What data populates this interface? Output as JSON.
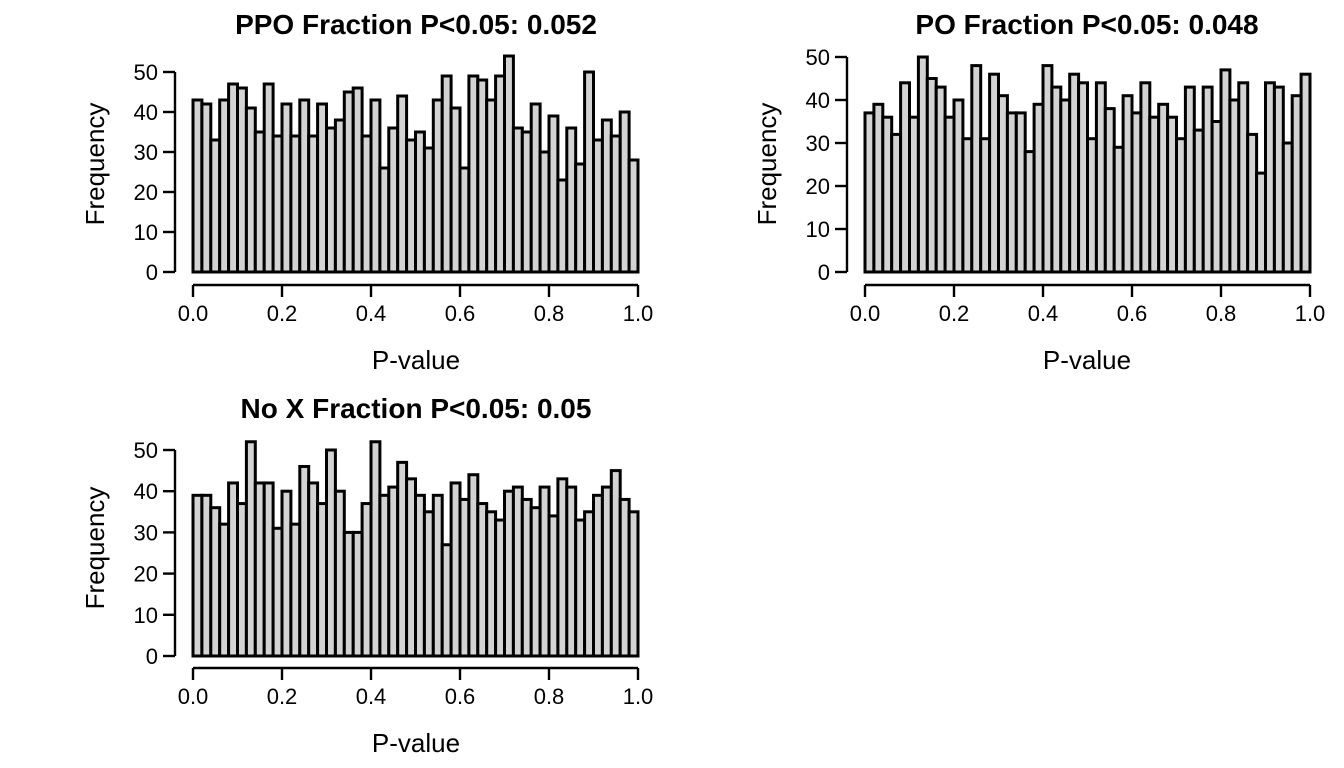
{
  "chart_data": [
    {
      "type": "bar",
      "title": "PPO    Fraction P<0.05: 0.052",
      "xlabel": "P-value",
      "ylabel": "Frequency",
      "xlim": [
        0,
        1
      ],
      "ylim": [
        0,
        50
      ],
      "xticks": [
        "0.0",
        "0.2",
        "0.4",
        "0.6",
        "0.8",
        "1.0"
      ],
      "yticks": [
        "0",
        "10",
        "20",
        "30",
        "40",
        "50"
      ],
      "bin_width": 0.02,
      "values": [
        43,
        42,
        33,
        43,
        47,
        46,
        41,
        35,
        47,
        34,
        42,
        34,
        43,
        34,
        42,
        36,
        38,
        45,
        46,
        34,
        43,
        26,
        36,
        44,
        33,
        35,
        31,
        43,
        49,
        41,
        26,
        49,
        48,
        43,
        49,
        54,
        36,
        35,
        42,
        30,
        39,
        23,
        36,
        27,
        50,
        33,
        38,
        34,
        40,
        28
      ],
      "colors": {
        "bar_fill": "#d3d3d3",
        "bar_stroke": "#000000"
      }
    },
    {
      "type": "bar",
      "title": "PO    Fraction P<0.05: 0.048",
      "xlabel": "P-value",
      "ylabel": "Frequency",
      "xlim": [
        0,
        1
      ],
      "ylim": [
        0,
        50
      ],
      "xticks": [
        "0.0",
        "0.2",
        "0.4",
        "0.6",
        "0.8",
        "1.0"
      ],
      "yticks": [
        "0",
        "10",
        "20",
        "30",
        "40",
        "50"
      ],
      "bin_width": 0.02,
      "values": [
        37,
        39,
        36,
        32,
        44,
        36,
        50,
        45,
        43,
        36,
        40,
        31,
        48,
        31,
        46,
        41,
        37,
        37,
        28,
        39,
        48,
        43,
        40,
        46,
        44,
        31,
        44,
        38,
        29,
        41,
        37,
        44,
        36,
        39,
        36,
        31,
        43,
        33,
        43,
        35,
        47,
        40,
        44,
        32,
        23,
        44,
        43,
        30,
        41,
        46
      ],
      "colors": {
        "bar_fill": "#d3d3d3",
        "bar_stroke": "#000000"
      }
    },
    {
      "type": "bar",
      "title": "No X    Fraction P<0.05: 0.05",
      "xlabel": "P-value",
      "ylabel": "Frequency",
      "xlim": [
        0,
        1
      ],
      "ylim": [
        0,
        50
      ],
      "xticks": [
        "0.0",
        "0.2",
        "0.4",
        "0.6",
        "0.8",
        "1.0"
      ],
      "yticks": [
        "0",
        "10",
        "20",
        "30",
        "40",
        "50"
      ],
      "bin_width": 0.02,
      "values": [
        39,
        39,
        36,
        32,
        42,
        37,
        52,
        42,
        42,
        31,
        40,
        32,
        46,
        42,
        37,
        50,
        40,
        30,
        30,
        37,
        52,
        39,
        41,
        47,
        43,
        39,
        35,
        39,
        27,
        42,
        38,
        44,
        37,
        35,
        33,
        40,
        41,
        38,
        36,
        41,
        34,
        43,
        41,
        33,
        35,
        39,
        41,
        45,
        38,
        35
      ],
      "colors": {
        "bar_fill": "#d3d3d3",
        "bar_stroke": "#000000"
      }
    }
  ]
}
